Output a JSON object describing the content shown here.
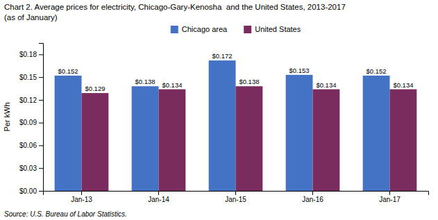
{
  "chart_data": {
    "type": "bar",
    "title": "Chart 2. Average prices for electricity, Chicago-Gary-Kenosha  and the United States, 2013-2017",
    "subtitle": "(as of January)",
    "ylabel": "Per kWh",
    "source": "Source: U.S. Bureau of Labor Statistics.",
    "categories": [
      "Jan-13",
      "Jan-14",
      "Jan-15",
      "Jan-16",
      "Jan-17"
    ],
    "series": [
      {
        "name": "Chicago area",
        "color": "#4472C4",
        "values": [
          0.152,
          0.138,
          0.172,
          0.153,
          0.152
        ],
        "value_labels": [
          "$0.152",
          "$0.138",
          "$0.172",
          "$0.153",
          "$0.152"
        ]
      },
      {
        "name": "United States",
        "color": "#7B2C5E",
        "values": [
          0.129,
          0.134,
          0.138,
          0.134,
          0.134
        ],
        "value_labels": [
          "$0.129",
          "$0.134",
          "$0.138",
          "$0.134",
          "$0.134"
        ]
      }
    ],
    "ylim": [
      0,
      0.195
    ],
    "yticks": [
      {
        "value": 0.0,
        "label": "$0.00"
      },
      {
        "value": 0.03,
        "label": "$0.03"
      },
      {
        "value": 0.06,
        "label": "$0.06"
      },
      {
        "value": 0.09,
        "label": "$0.09"
      },
      {
        "value": 0.12,
        "label": "$0.12"
      },
      {
        "value": 0.15,
        "label": "$0.15"
      },
      {
        "value": 0.18,
        "label": "$0.18"
      }
    ],
    "data_labels": true,
    "legend": "top",
    "grid": false
  }
}
